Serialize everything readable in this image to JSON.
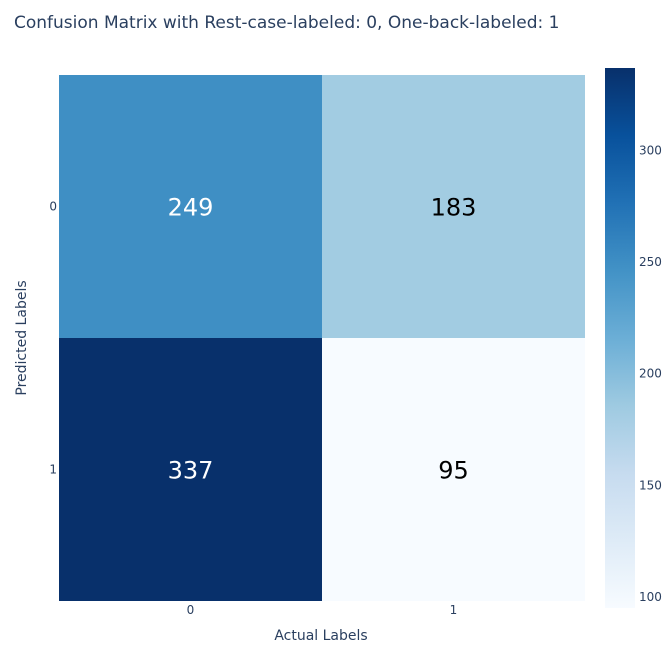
{
  "chart_data": {
    "type": "heatmap",
    "title": "Confusion Matrix with Rest-case-labeled: 0, One-back-labeled: 1",
    "xlabel": "Actual Labels",
    "ylabel": "Predicted Labels",
    "x_categories": [
      "0",
      "1"
    ],
    "y_categories": [
      "0",
      "1"
    ],
    "z": [
      [
        249,
        183
      ],
      [
        337,
        95
      ]
    ],
    "colorscale": "Blues",
    "colorbar": {
      "range": [
        95,
        337
      ],
      "tickvals": [
        100,
        150,
        200,
        250,
        300
      ],
      "ticktext": [
        "100",
        "150",
        "200",
        "250",
        "300"
      ]
    },
    "colors": {
      "stops": [
        "#f7fbff",
        "#deebf7",
        "#c6dbef",
        "#9ecae1",
        "#6baed6",
        "#4292c6",
        "#2171b5",
        "#08519c",
        "#08306b"
      ],
      "text": "#2a3f5f"
    }
  }
}
